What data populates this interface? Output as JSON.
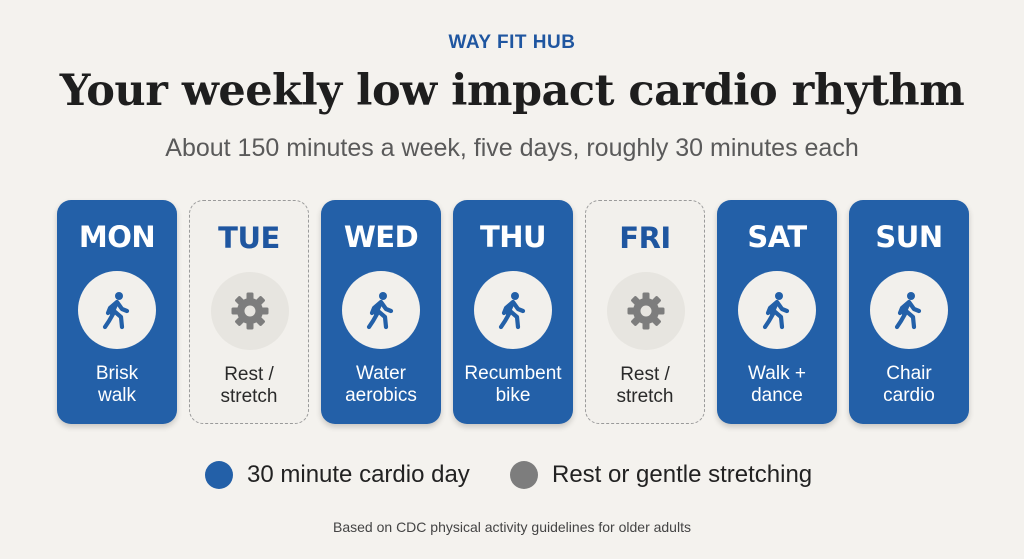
{
  "brand": "WAY FIT HUB",
  "title": "Your weekly low impact cardio rhythm",
  "subtitle": "About 150 minutes a week, five days, roughly 30 minutes each",
  "days": [
    {
      "day": "MON",
      "type": "cardio",
      "icon": "walking-person-icon",
      "line1": "Brisk",
      "line2": "walk"
    },
    {
      "day": "TUE",
      "type": "rest",
      "icon": "gear-icon",
      "line1": "Rest /",
      "line2": "stretch"
    },
    {
      "day": "WED",
      "type": "cardio",
      "icon": "walking-person-icon",
      "line1": "Water",
      "line2": "aerobics"
    },
    {
      "day": "THU",
      "type": "cardio",
      "icon": "walking-person-icon",
      "line1": "Recumbent",
      "line2": "bike"
    },
    {
      "day": "FRI",
      "type": "rest",
      "icon": "gear-icon",
      "line1": "Rest /",
      "line2": "stretch"
    },
    {
      "day": "SAT",
      "type": "cardio",
      "icon": "walking-person-icon",
      "line1": "Walk +",
      "line2": "dance"
    },
    {
      "day": "SUN",
      "type": "cardio",
      "icon": "walking-person-icon",
      "line1": "Chair",
      "line2": "cardio"
    }
  ],
  "legend": {
    "cardio_label": "30 minute cardio day",
    "rest_label": "Rest or gentle stretching"
  },
  "colors": {
    "cardio": "#2360a8",
    "rest": "#7d7d7d",
    "brand": "#1f56a0"
  },
  "footer": "Based on CDC physical activity guidelines for older adults"
}
